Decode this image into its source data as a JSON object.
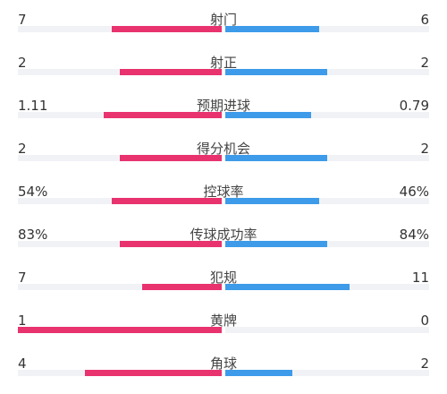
{
  "colors": {
    "home": "#e8336f",
    "away": "#3d9be9",
    "track": "#f1f2f6"
  },
  "stats": [
    {
      "label": "射门",
      "home": "7",
      "away": "6",
      "home_fill": 0.54,
      "away_fill": 0.46
    },
    {
      "label": "射正",
      "home": "2",
      "away": "2",
      "home_fill": 0.5,
      "away_fill": 0.5
    },
    {
      "label": "预期进球",
      "home": "1.11",
      "away": "0.79",
      "home_fill": 0.58,
      "away_fill": 0.42
    },
    {
      "label": "得分机会",
      "home": "2",
      "away": "2",
      "home_fill": 0.5,
      "away_fill": 0.5
    },
    {
      "label": "控球率",
      "home": "54%",
      "away": "46%",
      "home_fill": 0.54,
      "away_fill": 0.46
    },
    {
      "label": "传球成功率",
      "home": "83%",
      "away": "84%",
      "home_fill": 0.5,
      "away_fill": 0.5
    },
    {
      "label": "犯规",
      "home": "7",
      "away": "11",
      "home_fill": 0.39,
      "away_fill": 0.61
    },
    {
      "label": "黄牌",
      "home": "1",
      "away": "0",
      "home_fill": 1.0,
      "away_fill": 0.0
    },
    {
      "label": "角球",
      "home": "4",
      "away": "2",
      "home_fill": 0.67,
      "away_fill": 0.33
    }
  ]
}
